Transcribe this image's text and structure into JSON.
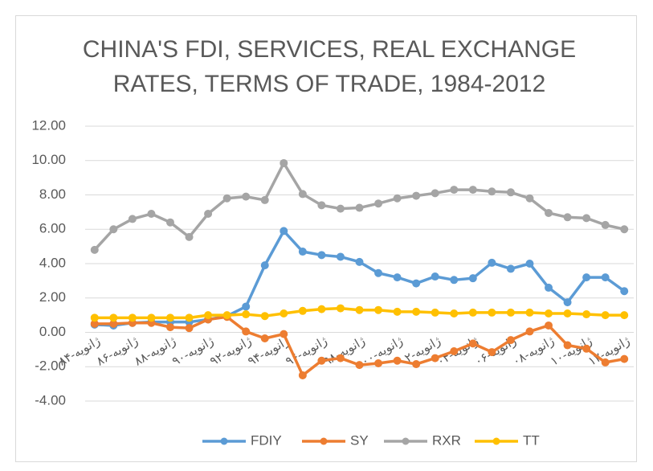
{
  "chart_data": {
    "type": "line",
    "title": "CHINA'S FDI, SERVICES, REAL EXCHANGE RATES, TERMS OF TRADE, 1984-2012",
    "categories": [
      "ژانویه-۸۴",
      null,
      "ژانویه-۸۶",
      null,
      "ژانویه-۸۸",
      null,
      "ژانویه-۹۰",
      null,
      "ژانویه-۹۲",
      null,
      "ژانویه-۹۴",
      null,
      "ژانویه-۹۶",
      null,
      "ژانویه-۹۸",
      null,
      "ژانویه-۰۰",
      null,
      "ژانویه-۰۲",
      null,
      "ژانویه-۰۴",
      null,
      "ژانویه-۰۶",
      null,
      "ژانویه-۰۸",
      null,
      "ژانویه-۱۰",
      null,
      "ژانویه-۱۲"
    ],
    "series": [
      {
        "name": "FDIY",
        "color": "#5b9bd5",
        "values": [
          0.45,
          0.4,
          0.55,
          0.6,
          0.6,
          0.6,
          0.75,
          0.95,
          1.5,
          3.9,
          5.9,
          4.7,
          4.5,
          4.4,
          4.1,
          3.45,
          3.2,
          2.85,
          3.25,
          3.05,
          3.15,
          4.05,
          3.7,
          4.0,
          2.6,
          1.75,
          3.2,
          3.2,
          2.4
        ]
      },
      {
        "name": "SY",
        "color": "#ed7d31",
        "values": [
          0.5,
          0.5,
          0.55,
          0.55,
          0.3,
          0.25,
          0.75,
          0.9,
          0.05,
          -0.35,
          -0.1,
          -2.5,
          -1.65,
          -1.5,
          -1.9,
          -1.8,
          -1.65,
          -1.85,
          -1.5,
          -1.1,
          -0.65,
          -1.15,
          -0.45,
          0.05,
          0.4,
          -0.75,
          -0.95,
          -1.75,
          -1.55
        ]
      },
      {
        "name": "RXR",
        "color": "#a5a5a5",
        "values": [
          4.8,
          6.0,
          6.6,
          6.9,
          6.4,
          5.55,
          6.9,
          7.8,
          7.9,
          7.7,
          9.85,
          8.05,
          7.4,
          7.2,
          7.25,
          7.5,
          7.8,
          7.95,
          8.1,
          8.3,
          8.3,
          8.2,
          8.15,
          7.8,
          6.95,
          6.7,
          6.65,
          6.25,
          6.0
        ]
      },
      {
        "name": "TT",
        "color": "#ffc000",
        "values": [
          0.85,
          0.85,
          0.85,
          0.85,
          0.85,
          0.85,
          1.0,
          1.0,
          1.05,
          0.95,
          1.1,
          1.25,
          1.35,
          1.4,
          1.3,
          1.3,
          1.2,
          1.2,
          1.15,
          1.1,
          1.15,
          1.15,
          1.15,
          1.15,
          1.1,
          1.1,
          1.05,
          1.0,
          1.0
        ]
      }
    ],
    "ylim": [
      -4,
      12
    ],
    "yticks": [
      {
        "value": -4,
        "label": "-4.00"
      },
      {
        "value": -2,
        "label": "-2.00"
      },
      {
        "value": 0,
        "label": "0.00"
      },
      {
        "value": 2,
        "label": "2.00"
      },
      {
        "value": 4,
        "label": "4.00"
      },
      {
        "value": 6,
        "label": "6.00"
      },
      {
        "value": 8,
        "label": "8.00"
      },
      {
        "value": 10,
        "label": "10.00"
      },
      {
        "value": 12,
        "label": "12.00"
      }
    ],
    "grid": true,
    "legend": "bottom"
  }
}
